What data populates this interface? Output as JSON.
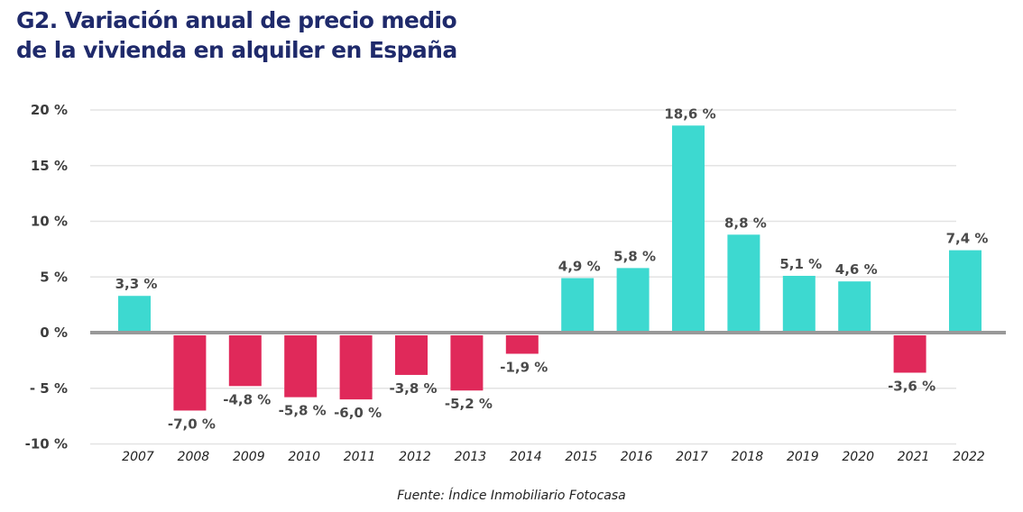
{
  "chart_data": {
    "type": "bar",
    "title": "G2. Variación anual de precio medio de la vivienda en alquiler en España",
    "xlabel": "",
    "ylabel": "",
    "ylim": [
      -10,
      20
    ],
    "yticks": [
      20,
      15,
      10,
      5,
      0,
      -5,
      -10
    ],
    "ytick_labels": [
      "20 %",
      "15 %",
      "10 %",
      "5 %",
      "0 %",
      "- 5 %",
      "-10 %"
    ],
    "grid": true,
    "categories": [
      "2007",
      "2008",
      "2009",
      "2010",
      "2011",
      "2012",
      "2013",
      "2014",
      "2015",
      "2016",
      "2017",
      "2018",
      "2019",
      "2020",
      "2021",
      "2022"
    ],
    "values": [
      3.3,
      -7.0,
      -4.8,
      -5.8,
      -6.0,
      -3.8,
      -5.2,
      -1.9,
      4.9,
      5.8,
      18.6,
      8.8,
      5.1,
      4.6,
      -3.6,
      7.4
    ],
    "data_labels": [
      "3,3 %",
      "-7,0 %",
      "-4,8 %",
      "-5,8 %",
      "-6,0 %",
      "-3,8 %",
      "-5,2 %",
      "-1,9 %",
      "4,9 %",
      "5,8 %",
      "18,6 %",
      "8,8 %",
      "5,1 %",
      "4,6 %",
      "-3,6 %",
      "7,4 %"
    ],
    "colors": {
      "positive": "#3dd9d0",
      "negative": "#e0295a",
      "zero_line": "#999999",
      "grid": "#e3e3e3"
    },
    "source": "Fuente: Índice Inmobiliario Fotocasa"
  }
}
